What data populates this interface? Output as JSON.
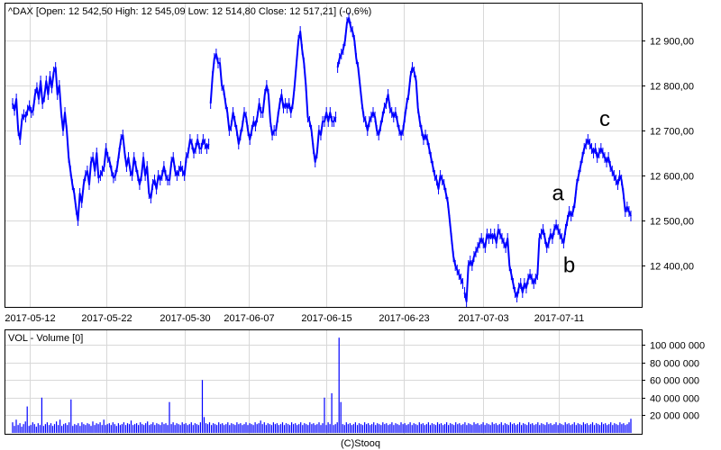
{
  "chart_data": [
    {
      "type": "line",
      "title": "^DAX [Open: 12 542,50   High: 12 545,09   Low: 12 514,80   Close: 12 517,21] (-0,6%)",
      "xlabel": "",
      "ylabel": "",
      "x_ticks": [
        "2017-05-12",
        "2017-05-22",
        "2017-05-30",
        "2017-06-07",
        "2017-06-15",
        "2017-06-23",
        "2017-07-03",
        "2017-07-11"
      ],
      "y_ticks": [
        "12 900,00",
        "12 800,00",
        "12 700,00",
        "12 600,00",
        "12 500,00",
        "12 400,00"
      ],
      "ylim": [
        12310,
        12960
      ],
      "grid": true,
      "color": "#0000ff",
      "series": [
        {
          "values": [
            12760,
            12745,
            12770,
            12700,
            12680,
            12725,
            12735,
            12730,
            12745,
            12755,
            12740,
            12745,
            12780,
            12795,
            12770,
            12810,
            12760,
            12775,
            12810,
            12780,
            12820,
            12795,
            12830,
            12840,
            12780,
            12800,
            12740,
            12700,
            12740,
            12700,
            12640,
            12610,
            12580,
            12560,
            12525,
            12500,
            12560,
            12540,
            12580,
            12600,
            12610,
            12580,
            12630,
            12640,
            12610,
            12650,
            12595,
            12600,
            12610,
            12620,
            12660,
            12640,
            12630,
            12610,
            12595,
            12600,
            12620,
            12650,
            12680,
            12690,
            12650,
            12620,
            12640,
            12610,
            12600,
            12640,
            12620,
            12600,
            12580,
            12600,
            12640,
            12600,
            12620,
            12560,
            12550,
            12580,
            12590,
            12570,
            12600,
            12590,
            12600,
            12620,
            12600,
            12590,
            12590,
            12630,
            12640,
            12610,
            12600,
            12610,
            12620,
            12610,
            12600,
            12640,
            12650,
            12680,
            12670,
            12650,
            12660,
            12680,
            12660,
            12660,
            12680,
            12670,
            12660,
            12670,
            12760,
            12820,
            12860,
            12870,
            12850,
            12850,
            12800,
            12790,
            12760,
            12740,
            12700,
            12710,
            12740,
            12720,
            12700,
            12670,
            12690,
            12710,
            12740,
            12730,
            12700,
            12680,
            12700,
            12720,
            12710,
            12730,
            12760,
            12740,
            12740,
            12780,
            12800,
            12780,
            12720,
            12690,
            12700,
            12700,
            12730,
            12760,
            12780,
            12750,
            12760,
            12750,
            12760,
            12740,
            12760,
            12800,
            12850,
            12900,
            12920,
            12880,
            12850,
            12800,
            12730,
            12720,
            12700,
            12660,
            12630,
            12650,
            12700,
            12690,
            12720,
            12720,
            12740,
            12720,
            12740,
            12720,
            12720,
            12730,
            12840,
            12860,
            12870,
            12880,
            12900,
            12940,
            12950,
            12930,
            12920,
            12900,
            12860,
            12840,
            12800,
            12760,
            12730,
            12720,
            12700,
            12720,
            12730,
            12740,
            12730,
            12700,
            12690,
            12710,
            12730,
            12750,
            12760,
            12780,
            12750,
            12740,
            12730,
            12740,
            12720,
            12700,
            12690,
            12700,
            12730,
            12760,
            12780,
            12820,
            12840,
            12830,
            12810,
            12750,
            12720,
            12700,
            12680,
            12690,
            12680,
            12660,
            12640,
            12620,
            12600,
            12590,
            12570,
            12600,
            12590,
            12580,
            12560,
            12540,
            12500,
            12460,
            12420,
            12400,
            12390,
            12380,
            12370,
            12360,
            12340,
            12320,
            12400,
            12410,
            12400,
            12420,
            12430,
            12440,
            12450,
            12460,
            12450,
            12440,
            12470,
            12460,
            12470,
            12460,
            12470,
            12450,
            12480,
            12470,
            12460,
            12450,
            12440,
            12460,
            12400,
            12380,
            12360,
            12340,
            12330,
            12350,
            12360,
            12340,
            12360,
            12350,
            12370,
            12380,
            12370,
            12360,
            12370,
            12380,
            12460,
            12470,
            12480,
            12460,
            12440,
            12450,
            12470,
            12460,
            12480,
            12490,
            12480,
            12470,
            12460,
            12450,
            12480,
            12500,
            12520,
            12510,
            12520,
            12540,
            12580,
            12600,
            12620,
            12640,
            12660,
            12670,
            12680,
            12670,
            12660,
            12650,
            12660,
            12640,
            12650,
            12660,
            12650,
            12640,
            12630,
            12640,
            12620,
            12610,
            12600,
            12590,
            12580,
            12600,
            12590,
            12560,
            12520,
            12530,
            12520,
            12510
          ]
        }
      ],
      "breaks": [
        106,
        174,
        242,
        338
      ],
      "annotations": [
        {
          "text": "a",
          "x_index": 292,
          "value": 12545
        },
        {
          "text": "b",
          "x_index": 298,
          "value": 12385
        },
        {
          "text": "c",
          "x_index": 317,
          "value": 12710
        }
      ]
    },
    {
      "type": "bar",
      "title": "VOL - Volume [0]",
      "y_ticks": [
        "100 000 000",
        "80 000 000",
        "60 000 000",
        "40 000 000",
        "20 000 000"
      ],
      "ylim": [
        0,
        120000000
      ],
      "grid": true,
      "color": "#0000ff",
      "values": [
        12000000,
        8000000,
        15000000,
        9000000,
        11000000,
        7000000,
        10000000,
        13000000,
        30000000,
        8000000,
        9000000,
        12000000,
        10000000,
        7000000,
        11000000,
        9000000,
        40000000,
        8000000,
        10000000,
        12000000,
        9000000,
        11000000,
        8000000,
        10000000,
        13000000,
        9000000,
        15000000,
        8000000,
        10000000,
        11000000,
        9000000,
        12000000,
        38000000,
        8000000,
        10000000,
        9000000,
        11000000,
        8000000,
        12000000,
        10000000,
        9000000,
        11000000,
        10000000,
        8000000,
        13000000,
        9000000,
        11000000,
        10000000,
        12000000,
        9000000,
        15000000,
        9000000,
        10000000,
        11000000,
        9000000,
        12000000,
        10000000,
        8000000,
        11000000,
        9000000,
        10000000,
        12000000,
        9000000,
        11000000,
        10000000,
        14000000,
        9000000,
        10000000,
        11000000,
        9000000,
        12000000,
        10000000,
        9000000,
        11000000,
        13000000,
        9000000,
        10000000,
        12000000,
        9000000,
        11000000,
        10000000,
        9000000,
        12000000,
        10000000,
        11000000,
        9000000,
        35000000,
        10000000,
        12000000,
        9000000,
        11000000,
        10000000,
        9000000,
        12000000,
        10000000,
        11000000,
        9000000,
        10000000,
        12000000,
        9000000,
        11000000,
        10000000,
        9000000,
        12000000,
        60000000,
        18000000,
        11000000,
        10000000,
        12000000,
        9000000,
        11000000,
        10000000,
        9000000,
        12000000,
        10000000,
        11000000,
        9000000,
        10000000,
        12000000,
        9000000,
        11000000,
        10000000,
        9000000,
        12000000,
        10000000,
        11000000,
        9000000,
        10000000,
        12000000,
        9000000,
        11000000,
        10000000,
        9000000,
        12000000,
        10000000,
        11000000,
        14000000,
        10000000,
        12000000,
        9000000,
        11000000,
        10000000,
        9000000,
        12000000,
        10000000,
        11000000,
        9000000,
        10000000,
        12000000,
        9000000,
        11000000,
        10000000,
        9000000,
        12000000,
        10000000,
        11000000,
        9000000,
        10000000,
        12000000,
        9000000,
        11000000,
        10000000,
        9000000,
        12000000,
        10000000,
        11000000,
        9000000,
        10000000,
        12000000,
        9000000,
        11000000,
        40000000,
        9000000,
        12000000,
        10000000,
        45000000,
        9000000,
        10000000,
        12000000,
        108000000,
        35000000,
        10000000,
        9000000,
        12000000,
        10000000,
        11000000,
        9000000,
        10000000,
        12000000,
        9000000,
        11000000,
        10000000,
        9000000,
        12000000,
        10000000,
        11000000,
        9000000,
        10000000,
        12000000,
        9000000,
        11000000,
        10000000,
        9000000,
        12000000,
        10000000,
        11000000,
        9000000,
        10000000,
        12000000,
        9000000,
        11000000,
        10000000,
        9000000,
        12000000,
        10000000,
        11000000,
        9000000,
        10000000,
        12000000,
        9000000,
        11000000,
        10000000,
        9000000,
        12000000,
        10000000,
        11000000,
        9000000,
        10000000,
        12000000,
        9000000,
        11000000,
        10000000,
        9000000,
        12000000,
        10000000,
        11000000,
        9000000,
        10000000,
        12000000,
        9000000,
        11000000,
        10000000,
        9000000,
        12000000,
        10000000,
        11000000,
        9000000,
        10000000,
        12000000,
        9000000,
        11000000,
        10000000,
        9000000,
        12000000,
        10000000,
        11000000,
        9000000,
        10000000,
        12000000,
        9000000,
        11000000,
        10000000,
        9000000,
        12000000,
        10000000,
        11000000,
        9000000,
        10000000,
        12000000,
        9000000,
        11000000,
        10000000,
        9000000,
        12000000,
        10000000,
        11000000,
        9000000,
        10000000,
        12000000,
        9000000,
        11000000,
        10000000,
        9000000,
        12000000,
        10000000,
        11000000,
        9000000,
        10000000,
        12000000,
        9000000,
        11000000,
        10000000,
        9000000,
        12000000,
        10000000,
        11000000,
        9000000,
        10000000,
        12000000,
        9000000,
        11000000,
        10000000,
        9000000,
        12000000,
        10000000,
        11000000,
        9000000,
        10000000,
        12000000,
        9000000,
        11000000,
        10000000,
        9000000,
        12000000,
        10000000,
        11000000,
        9000000,
        10000000,
        12000000,
        9000000,
        11000000,
        10000000,
        9000000,
        12000000,
        10000000,
        11000000,
        9000000,
        10000000,
        12000000,
        9000000,
        11000000,
        10000000,
        9000000,
        12000000,
        10000000,
        11000000,
        9000000,
        10000000,
        12000000,
        16000000
      ]
    }
  ],
  "footer": "(C)Stooq"
}
